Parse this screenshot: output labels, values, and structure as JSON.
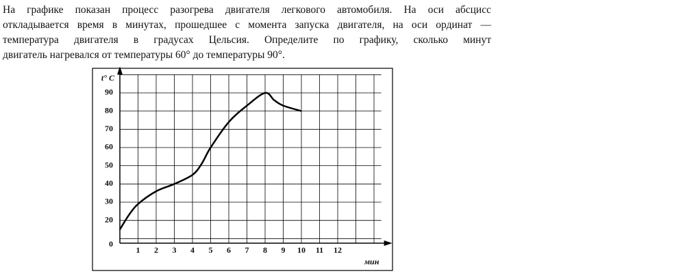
{
  "problem_text": [
    "На графике показан процесс разогрева двигателя легкового автомобиля. На оси абсцисс",
    "откладывается время в минутах, прошедшее с момента запуска двигателя, на оси ординат —",
    "температура двигателя в градусах Цельсия. Определите по графику, сколько минут",
    "двигатель нагревался от температуры 60° до температуры 90°."
  ],
  "chart_data": {
    "type": "line",
    "x_label": "мин",
    "y_label": "t° C",
    "origin_label": "0",
    "x": [
      0,
      0.5,
      1,
      2,
      3,
      4,
      4.5,
      5,
      6,
      7,
      8,
      8.5,
      9,
      10
    ],
    "values": [
      15,
      23,
      29,
      36,
      40,
      45,
      51,
      60,
      74,
      83,
      90,
      86,
      83,
      80
    ],
    "color": "#000000",
    "xlim": [
      0,
      14.4
    ],
    "xticks": [
      1,
      2,
      3,
      4,
      5,
      6,
      7,
      8,
      9,
      10,
      11,
      12
    ],
    "ylim": [
      7.5,
      100
    ],
    "yticks": [
      20,
      30,
      40,
      50,
      60,
      70,
      80,
      90
    ],
    "grid": true
  }
}
